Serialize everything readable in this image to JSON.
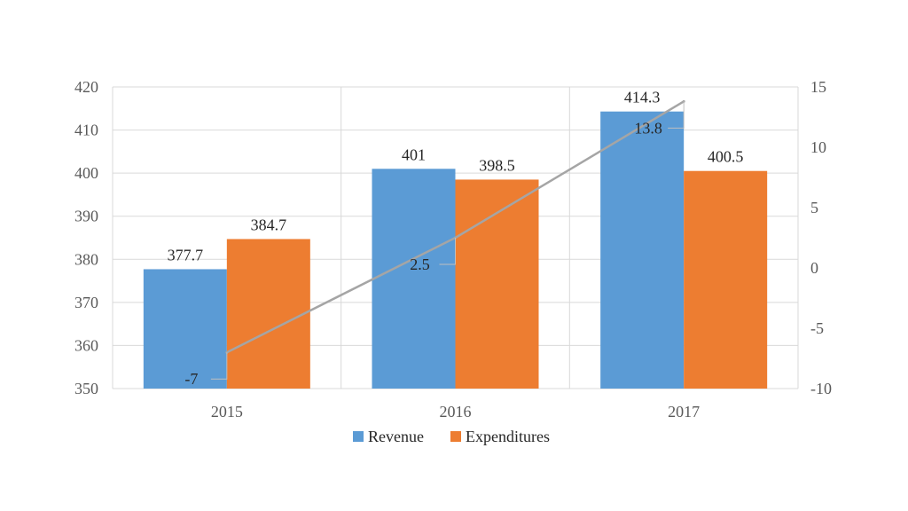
{
  "chart_data": {
    "type": "bar",
    "categories": [
      "2015",
      "2016",
      "2017"
    ],
    "series": [
      {
        "name": "Revenue",
        "kind": "bar",
        "axis": "left",
        "color": "#5B9BD5",
        "values": [
          377.7,
          401,
          414.3
        ]
      },
      {
        "name": "Expenditures",
        "kind": "bar",
        "axis": "left",
        "color": "#ED7D31",
        "values": [
          384.7,
          398.5,
          400.5
        ]
      },
      {
        "name": "",
        "kind": "line",
        "axis": "right",
        "color": "#A5A5A5",
        "values": [
          -7,
          2.5,
          13.8
        ]
      }
    ],
    "y_left": {
      "min": 350,
      "max": 420,
      "ticks": [
        "350",
        "360",
        "370",
        "380",
        "390",
        "400",
        "410",
        "420"
      ]
    },
    "y_right": {
      "min": -10,
      "max": 15,
      "ticks": [
        "-10",
        "-5",
        "0",
        "5",
        "10",
        "15"
      ]
    },
    "data_labels": {
      "Revenue": [
        "377.7",
        "401",
        "414.3"
      ],
      "Expenditures": [
        "384.7",
        "398.5",
        "400.5"
      ],
      "line": [
        "-7",
        "2.5",
        "13.8"
      ]
    },
    "grid": true,
    "legend": {
      "position": "bottom",
      "entries": [
        "Revenue",
        "Expenditures"
      ]
    },
    "title": "",
    "xlabel": "",
    "ylabel": ""
  }
}
